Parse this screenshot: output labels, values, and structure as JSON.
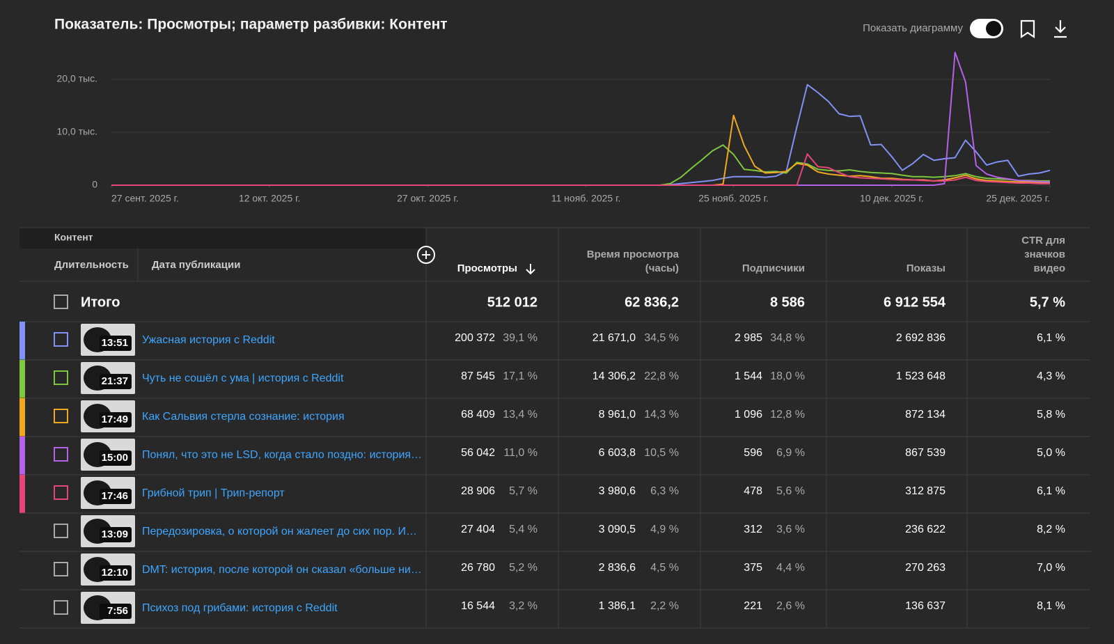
{
  "header": {
    "title": "Показатель: Просмотры; параметр разбивки: Контент",
    "toggle_label": "Показать диаграмму"
  },
  "chart_data": {
    "type": "line",
    "x": [
      "2025-09-27",
      "2025-11-18",
      "2025-11-19",
      "2025-11-20",
      "2025-11-21",
      "2025-11-22",
      "2025-11-23",
      "2025-11-24",
      "2025-11-25",
      "2025-11-26",
      "2025-11-27",
      "2025-11-28",
      "2025-11-29",
      "2025-11-30",
      "2025-12-01",
      "2025-12-02",
      "2025-12-03",
      "2025-12-04",
      "2025-12-05",
      "2025-12-06",
      "2025-12-07",
      "2025-12-08",
      "2025-12-09",
      "2025-12-10",
      "2025-12-11",
      "2025-12-12",
      "2025-12-13",
      "2025-12-14",
      "2025-12-15",
      "2025-12-16",
      "2025-12-17",
      "2025-12-18",
      "2025-12-19",
      "2025-12-20",
      "2025-12-21",
      "2025-12-22",
      "2025-12-23",
      "2025-12-24",
      "2025-12-25"
    ],
    "xlim": [
      "2025-09-27",
      "2025-12-25"
    ],
    "xticks": [
      {
        "value": "2025-09-27",
        "label": "27 сент. 2025 г."
      },
      {
        "value": "2025-10-12",
        "label": "12 окт. 2025 г."
      },
      {
        "value": "2025-10-27",
        "label": "27 окт. 2025 г."
      },
      {
        "value": "2025-11-11",
        "label": "11 нояб. 2025 г."
      },
      {
        "value": "2025-11-25",
        "label": "25 нояб. 2025 г."
      },
      {
        "value": "2025-12-10",
        "label": "10 дек. 2025 г."
      },
      {
        "value": "2025-12-25",
        "label": "25 дек. 2025 г."
      }
    ],
    "ylim": [
      0,
      26000
    ],
    "yticks": [
      0,
      {
        "value": 10000,
        "label": "10,0 тыс."
      },
      {
        "value": 20000,
        "label": "20,0 тыс."
      }
    ],
    "grid": true,
    "series": [
      {
        "color": "#8092f5",
        "values": [
          0,
          0,
          100,
          300,
          500,
          700,
          900,
          1300,
          1600,
          1600,
          1600,
          1500,
          1700,
          2600,
          11000,
          19000,
          17500,
          15800,
          13500,
          13000,
          13100,
          7600,
          7700,
          5400,
          2800,
          4100,
          5800,
          4700,
          5000,
          5200,
          8500,
          6300,
          3800,
          4400,
          4700,
          1700,
          2100,
          2300,
          2800
        ]
      },
      {
        "color": "#7cc83f",
        "values": [
          0,
          0,
          300,
          1500,
          3200,
          4800,
          6500,
          7600,
          5800,
          3000,
          2800,
          2500,
          2600,
          2300,
          4300,
          4000,
          3000,
          2800,
          2700,
          2900,
          2600,
          2400,
          2300,
          2200,
          1900,
          1600,
          1600,
          1500,
          1600,
          1800,
          2200,
          1600,
          1300,
          1200,
          1100,
          900,
          900,
          800,
          800
        ]
      },
      {
        "color": "#f0a821",
        "values": [
          0,
          0,
          0,
          0,
          0,
          0,
          0,
          200,
          13200,
          7500,
          3600,
          2300,
          2400,
          2600,
          4100,
          3800,
          2500,
          2100,
          1900,
          1700,
          1800,
          1600,
          1300,
          1300,
          1100,
          1000,
          1000,
          800,
          1000,
          1400,
          1900,
          1200,
          900,
          800,
          700,
          600,
          600,
          500,
          500
        ]
      },
      {
        "color": "#b462e8",
        "values": [
          0,
          0,
          0,
          0,
          0,
          0,
          0,
          0,
          0,
          0,
          0,
          0,
          0,
          0,
          0,
          0,
          0,
          0,
          0,
          0,
          0,
          0,
          0,
          0,
          0,
          0,
          0,
          0,
          300,
          25100,
          19500,
          3700,
          2100,
          1500,
          1200,
          900,
          800,
          700,
          600
        ]
      },
      {
        "color": "#e6457a",
        "values": [
          0,
          0,
          0,
          0,
          0,
          0,
          0,
          0,
          0,
          0,
          0,
          0,
          0,
          0,
          0,
          5900,
          3500,
          3300,
          2400,
          1600,
          1400,
          1300,
          1200,
          1100,
          1000,
          1000,
          900,
          800,
          800,
          1000,
          1500,
          900,
          700,
          600,
          500,
          400,
          400,
          300,
          300
        ]
      }
    ]
  },
  "table": {
    "content_label": "Контент",
    "duration_label": "Длительность",
    "date_label": "Дата публикации",
    "columns": [
      {
        "lines": [
          "Просмотры"
        ]
      },
      {
        "lines": [
          "Время просмотра",
          "(часы)"
        ]
      },
      {
        "lines": [
          "Подписчики"
        ]
      },
      {
        "lines": [
          "Показы"
        ]
      },
      {
        "lines": [
          "CTR для",
          "значков",
          "видео"
        ]
      }
    ],
    "total": {
      "label": "Итого",
      "views": "512 012",
      "watch_time": "62 836,2",
      "subscribers": "8 586",
      "impressions": "6 912 554",
      "ctr": "5,7 %"
    },
    "rows": [
      {
        "title": "Ужасная история с Reddit",
        "duration": "13:51",
        "views": "200 372",
        "views_share": "39,1 %",
        "watch_time": "21 671,0",
        "watch_time_share": "34,5 %",
        "subscribers": "2 985",
        "subscribers_share": "34,8 %",
        "impressions": "2 692 836",
        "ctr": "6,1 %"
      },
      {
        "title": "Чуть не сошёл с ума | история с Reddit",
        "duration": "21:37",
        "views": "87 545",
        "views_share": "17,1 %",
        "watch_time": "14 306,2",
        "watch_time_share": "22,8 %",
        "subscribers": "1 544",
        "subscribers_share": "18,0 %",
        "impressions": "1 523 648",
        "ctr": "4,3 %"
      },
      {
        "title": "Как Сальвия стерла сознание: история",
        "duration": "17:49",
        "views": "68 409",
        "views_share": "13,4 %",
        "watch_time": "8 961,0",
        "watch_time_share": "14,3 %",
        "subscribers": "1 096",
        "subscribers_share": "12,8 %",
        "impressions": "872 134",
        "ctr": "5,8 %"
      },
      {
        "title": "Понял, что это не LSD, когда стало поздно: история…",
        "duration": "15:00",
        "views": "56 042",
        "views_share": "11,0 %",
        "watch_time": "6 603,8",
        "watch_time_share": "10,5 %",
        "subscribers": "596",
        "subscribers_share": "6,9 %",
        "impressions": "867 539",
        "ctr": "5,0 %"
      },
      {
        "title": "Грибной трип | Трип-репорт",
        "duration": "17:46",
        "views": "28 906",
        "views_share": "5,7 %",
        "watch_time": "3 980,6",
        "watch_time_share": "6,3 %",
        "subscribers": "478",
        "subscribers_share": "5,6 %",
        "impressions": "312 875",
        "ctr": "6,1 %"
      },
      {
        "title": "Передозировка, о которой он жалеет до сих пор. И…",
        "duration": "13:09",
        "views": "27 404",
        "views_share": "5,4 %",
        "watch_time": "3 090,5",
        "watch_time_share": "4,9 %",
        "subscribers": "312",
        "subscribers_share": "3,6 %",
        "impressions": "236 622",
        "ctr": "8,2 %"
      },
      {
        "title": "DMT: история, после которой он сказал «больше ни…",
        "duration": "12:10",
        "views": "26 780",
        "views_share": "5,2 %",
        "watch_time": "2 836,6",
        "watch_time_share": "4,5 %",
        "subscribers": "375",
        "subscribers_share": "4,4 %",
        "impressions": "270 263",
        "ctr": "7,0 %"
      },
      {
        "title": "Психоз под грибами: история с Reddit",
        "duration": "7:56",
        "views": "16 544",
        "views_share": "3,2 %",
        "watch_time": "1 386,1",
        "watch_time_share": "2,2 %",
        "subscribers": "221",
        "subscribers_share": "2,6 %",
        "impressions": "136 637",
        "ctr": "8,1 %"
      }
    ]
  }
}
